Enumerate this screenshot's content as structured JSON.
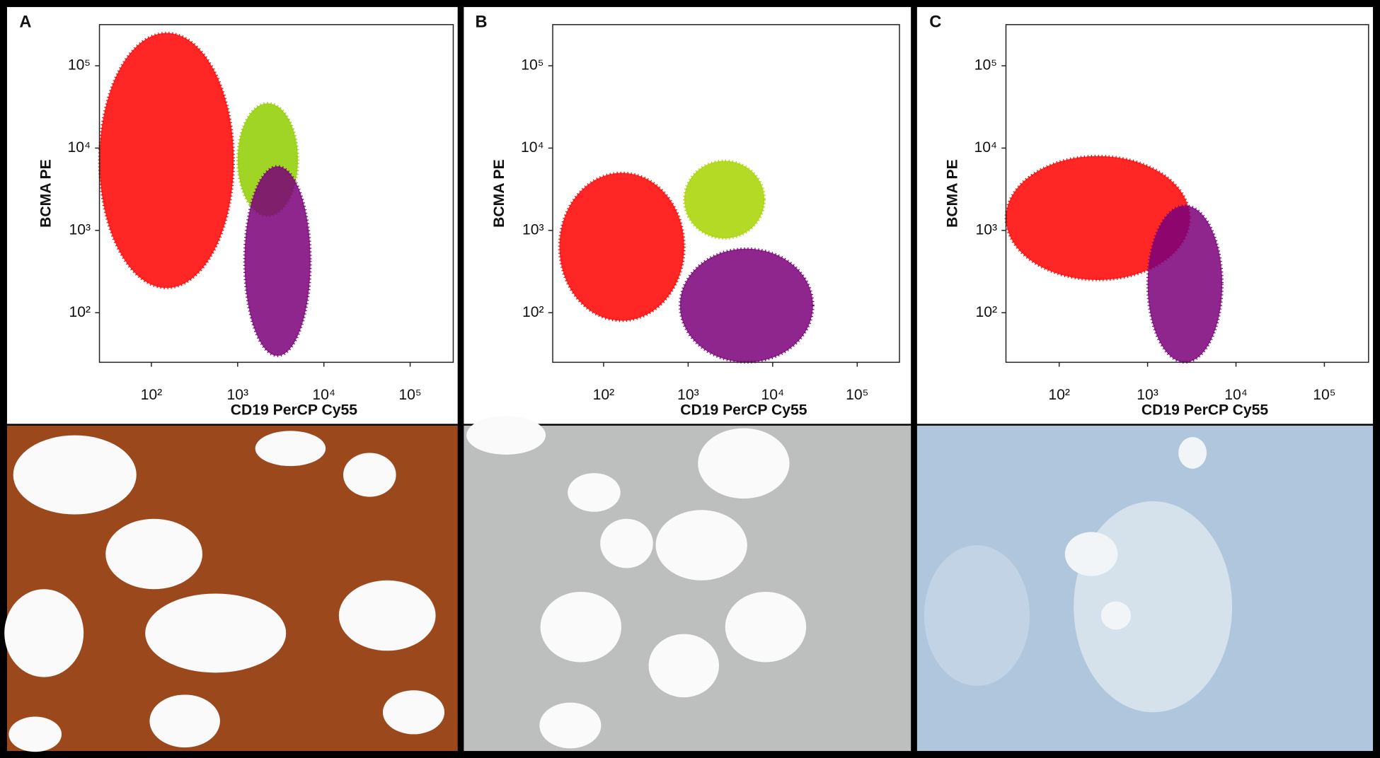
{
  "chart_data": [
    {
      "type": "scatter",
      "panel": "A",
      "x_label": "CD19 PerCP Cy55",
      "y_label": "BCMA PE",
      "log_scale": true,
      "xlim": [
        25,
        316000
      ],
      "ylim": [
        25,
        316000
      ],
      "xticks": [
        {
          "value": 100,
          "label": "10²"
        },
        {
          "value": 1000,
          "label": "10³"
        },
        {
          "value": 10000,
          "label": "10⁴"
        },
        {
          "value": 100000,
          "label": "10⁵"
        }
      ],
      "yticks": [
        {
          "value": 100,
          "label": "10²"
        },
        {
          "value": 1000,
          "label": "10³"
        },
        {
          "value": 10000,
          "label": "10⁴"
        },
        {
          "value": 100000,
          "label": "10⁵"
        }
      ],
      "populations": [
        {
          "color": "#ff0000",
          "x": [
            25,
            900
          ],
          "y": [
            200,
            250000
          ]
        },
        {
          "color": "#8fce00",
          "x": [
            1000,
            5000
          ],
          "y": [
            1500,
            35000
          ]
        },
        {
          "color": "#7a007a",
          "x": [
            1200,
            7000
          ],
          "y": [
            30,
            6000
          ]
        }
      ]
    },
    {
      "type": "scatter",
      "panel": "B",
      "x_label": "CD19 PerCP Cy55",
      "y_label": "BCMA PE",
      "log_scale": true,
      "xlim": [
        25,
        316000
      ],
      "ylim": [
        25,
        316000
      ],
      "xticks": [
        {
          "value": 100,
          "label": "10²"
        },
        {
          "value": 1000,
          "label": "10³"
        },
        {
          "value": 10000,
          "label": "10⁴"
        },
        {
          "value": 100000,
          "label": "10⁵"
        }
      ],
      "yticks": [
        {
          "value": 100,
          "label": "10²"
        },
        {
          "value": 1000,
          "label": "10³"
        },
        {
          "value": 10000,
          "label": "10⁴"
        },
        {
          "value": 100000,
          "label": "10⁵"
        }
      ],
      "populations": [
        {
          "color": "#ff0000",
          "x": [
            30,
            900
          ],
          "y": [
            80,
            5000
          ]
        },
        {
          "color": "#a8d400",
          "x": [
            900,
            8000
          ],
          "y": [
            800,
            7000
          ]
        },
        {
          "color": "#7a007a",
          "x": [
            800,
            30000
          ],
          "y": [
            25,
            600
          ]
        }
      ]
    },
    {
      "type": "scatter",
      "panel": "C",
      "x_label": "CD19 PerCP Cy55",
      "y_label": "BCMA PE",
      "log_scale": true,
      "xlim": [
        25,
        316000
      ],
      "ylim": [
        25,
        316000
      ],
      "xticks": [
        {
          "value": 100,
          "label": "10²"
        },
        {
          "value": 1000,
          "label": "10³"
        },
        {
          "value": 10000,
          "label": "10⁴"
        },
        {
          "value": 100000,
          "label": "10⁵"
        }
      ],
      "yticks": [
        {
          "value": 100,
          "label": "10²"
        },
        {
          "value": 1000,
          "label": "10³"
        },
        {
          "value": 10000,
          "label": "10⁴"
        },
        {
          "value": 100000,
          "label": "10⁵"
        }
      ],
      "populations": [
        {
          "color": "#ff0000",
          "x": [
            25,
            3000
          ],
          "y": [
            250,
            8000
          ]
        },
        {
          "color": "#7a007a",
          "x": [
            1000,
            7000
          ],
          "y": [
            25,
            2000
          ]
        }
      ]
    }
  ]
}
